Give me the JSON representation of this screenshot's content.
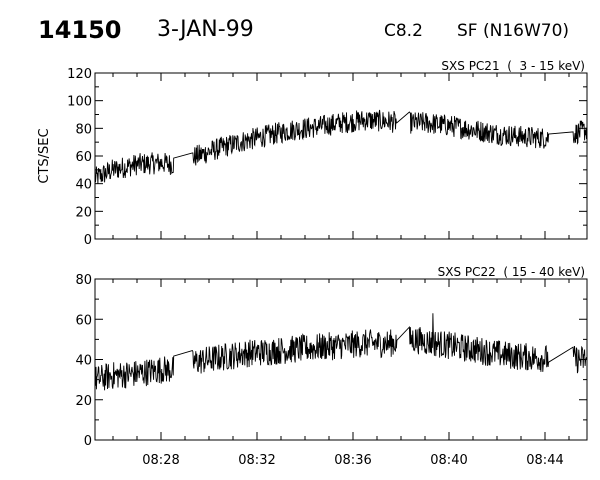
{
  "header": {
    "event_number": "14150",
    "date": "3-JAN-99",
    "goes_class": "C8.2",
    "flare_info": "SF (N16W70)"
  },
  "chart_data": [
    {
      "type": "line",
      "title": "SXS PC21  (  3 - 15 keV)",
      "xlabel": "",
      "ylabel": "CTS/SEC",
      "xlim": [
        "08:25:15",
        "08:45:45"
      ],
      "ylim": [
        0,
        120
      ],
      "y_ticks": [
        0,
        20,
        40,
        60,
        80,
        100,
        120
      ],
      "x_ticks": [
        "08:28",
        "08:32",
        "08:36",
        "08:40",
        "08:44"
      ],
      "grid": false,
      "series": [
        {
          "values_trend": [
            {
              "t": "08:25:15",
              "y": 44
            },
            {
              "t": "08:26:00",
              "y": 50
            },
            {
              "t": "08:27:00",
              "y": 54
            },
            {
              "t": "08:28:00",
              "y": 55
            },
            {
              "t": "08:28:30",
              "y": 54
            },
            {
              "t": "08:29:30",
              "y": 60
            },
            {
              "t": "08:30:30",
              "y": 66
            },
            {
              "t": "08:31:30",
              "y": 71
            },
            {
              "t": "08:32:30",
              "y": 75
            },
            {
              "t": "08:33:30",
              "y": 79
            },
            {
              "t": "08:34:30",
              "y": 81
            },
            {
              "t": "08:35:30",
              "y": 84
            },
            {
              "t": "08:36:30",
              "y": 86
            },
            {
              "t": "08:37:30",
              "y": 85
            },
            {
              "t": "08:38:00",
              "y": 84
            },
            {
              "t": "08:39:00",
              "y": 84
            },
            {
              "t": "08:40:00",
              "y": 82
            },
            {
              "t": "08:41:00",
              "y": 79
            },
            {
              "t": "08:42:00",
              "y": 76
            },
            {
              "t": "08:43:00",
              "y": 74
            },
            {
              "t": "08:44:00",
              "y": 73
            },
            {
              "t": "08:45:00",
              "y": 75
            },
            {
              "t": "08:45:45",
              "y": 79
            }
          ],
          "gaps": [
            [
              "08:28:32",
              "08:29:18"
            ],
            [
              "08:37:50",
              "08:38:20"
            ],
            [
              "08:44:10",
              "08:45:10"
            ]
          ],
          "noise_amplitude": 8
        }
      ]
    },
    {
      "type": "line",
      "title": "SXS PC22  ( 15 - 40 keV)",
      "xlabel": "",
      "ylabel": "",
      "xlim": [
        "08:25:15",
        "08:45:45"
      ],
      "ylim": [
        0,
        80
      ],
      "y_ticks": [
        0,
        20,
        40,
        60,
        80
      ],
      "x_ticks": [
        "08:28",
        "08:32",
        "08:36",
        "08:40",
        "08:44"
      ],
      "grid": false,
      "series": [
        {
          "values_trend": [
            {
              "t": "08:25:15",
              "y": 30
            },
            {
              "t": "08:26:00",
              "y": 32
            },
            {
              "t": "08:27:00",
              "y": 33
            },
            {
              "t": "08:28:00",
              "y": 35
            },
            {
              "t": "08:28:30",
              "y": 35
            },
            {
              "t": "08:29:30",
              "y": 39
            },
            {
              "t": "08:30:30",
              "y": 41
            },
            {
              "t": "08:31:30",
              "y": 43
            },
            {
              "t": "08:32:30",
              "y": 44
            },
            {
              "t": "08:33:30",
              "y": 45
            },
            {
              "t": "08:34:30",
              "y": 46
            },
            {
              "t": "08:35:30",
              "y": 47
            },
            {
              "t": "08:36:30",
              "y": 48
            },
            {
              "t": "08:37:30",
              "y": 48
            },
            {
              "t": "08:38:30",
              "y": 50
            },
            {
              "t": "08:39:30",
              "y": 48
            },
            {
              "t": "08:40:30",
              "y": 46
            },
            {
              "t": "08:41:30",
              "y": 44
            },
            {
              "t": "08:42:30",
              "y": 42
            },
            {
              "t": "08:43:30",
              "y": 41
            },
            {
              "t": "08:44:30",
              "y": 40
            },
            {
              "t": "08:45:45",
              "y": 40
            }
          ],
          "gaps": [
            [
              "08:28:32",
              "08:29:18"
            ],
            [
              "08:37:50",
              "08:38:20"
            ],
            [
              "08:44:10",
              "08:45:10"
            ]
          ],
          "peaks": [
            {
              "t": "08:39:20",
              "y": 63
            }
          ],
          "noise_amplitude": 7
        }
      ]
    }
  ]
}
